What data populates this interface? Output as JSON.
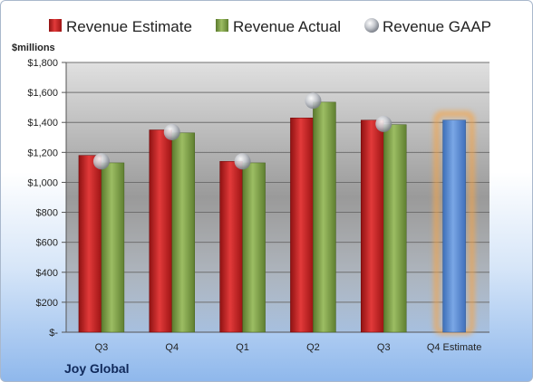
{
  "chart_data": {
    "type": "bar",
    "ylabel": "$millions",
    "ylim": [
      0,
      1800
    ],
    "yticks": [
      "$-",
      "$200",
      "$400",
      "$600",
      "$800",
      "$1,000",
      "$1,200",
      "$1,400",
      "$1,600",
      "$1,800"
    ],
    "categories": [
      "Q3",
      "Q4",
      "Q1",
      "Q2",
      "Q3",
      "Q4 Estimate"
    ],
    "series": [
      {
        "name": "Revenue Estimate",
        "type": "bar",
        "color": "#cc1f1f",
        "values": [
          1180,
          1350,
          1140,
          1430,
          1415,
          null
        ]
      },
      {
        "name": "Revenue Actual",
        "type": "bar",
        "color": "#7fa04a",
        "values": [
          1130,
          1330,
          1130,
          1535,
          1385,
          1415
        ]
      },
      {
        "name": "Revenue GAAP",
        "type": "marker",
        "color": "#b8bcc4",
        "values": [
          1140,
          1335,
          1140,
          1545,
          1390,
          null
        ]
      }
    ],
    "highlight_category": "Q4 Estimate",
    "highlight_bar_color": "#5b8fd6",
    "highlight_glow_color": "#f5a54a",
    "legend": "top",
    "grid": true
  },
  "footer": {
    "company": "Joy Global"
  }
}
